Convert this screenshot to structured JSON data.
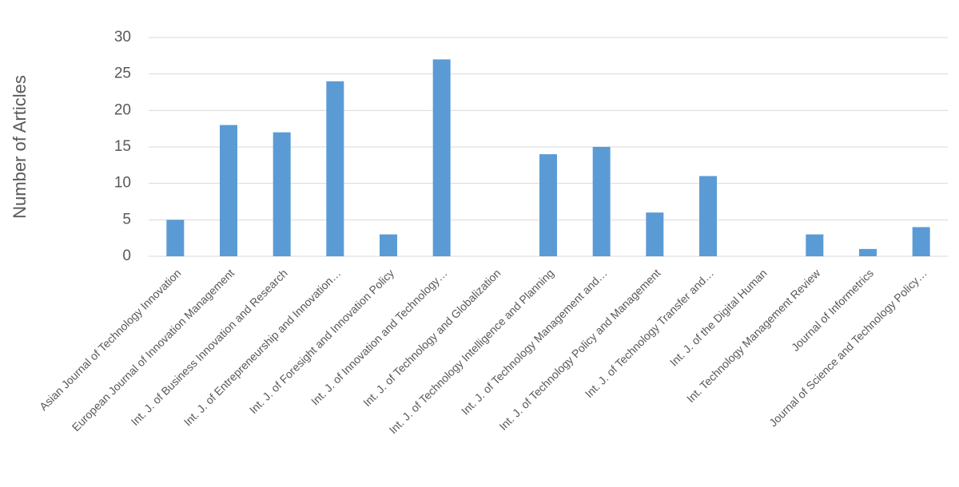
{
  "chart_data": {
    "type": "bar",
    "y_label": "Number of Articles",
    "categories": [
      "Asian Journal of Technology Innovation",
      "European Journal of Innovation Management",
      "Int. J. of Business Innovation and Research",
      "Int. J. of Entrepreneurship and Innovation…",
      "Int. J. of Foresight and Innovation Policy",
      "Int. J. of Innovation and Technology…",
      "Int. J. of Technology and Globalization",
      "Int. J. of Technology Intelligence and Planning",
      "Int. J. of Technology Management and…",
      "Int. J. of Technology Policy and Management",
      "Int. J. of Technology Transfer and…",
      "Int. J. of the Digital Human",
      "Int. Technology Management Review",
      "Journal of Informetrics",
      "Journal of Science and Technology Policy…"
    ],
    "values": [
      5,
      18,
      17,
      24,
      3,
      27,
      0,
      14,
      15,
      6,
      11,
      0,
      3,
      1,
      4
    ],
    "color": "#5b9bd5",
    "ylim": [
      0,
      30
    ],
    "yticks": [
      0,
      5,
      10,
      15,
      20,
      25,
      30
    ],
    "grid": true
  }
}
